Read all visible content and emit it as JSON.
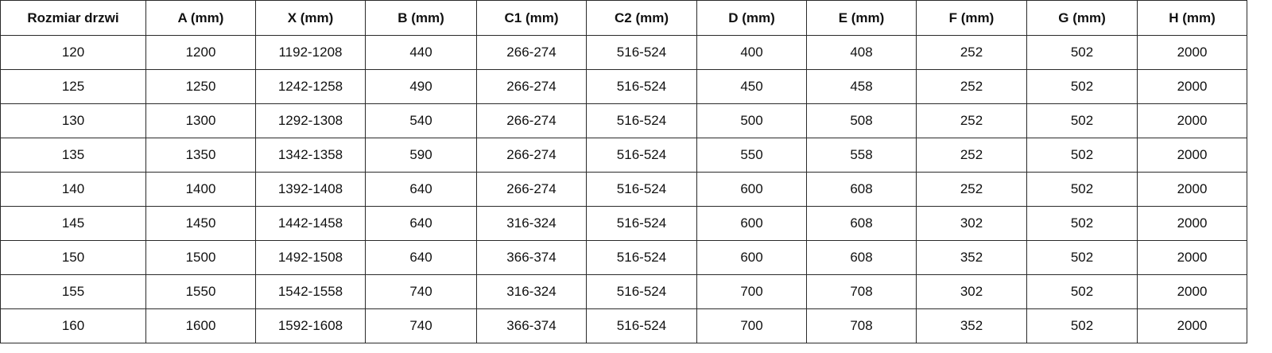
{
  "table": {
    "headers": [
      "Rozmiar drzwi",
      "A (mm)",
      "X (mm)",
      "B (mm)",
      "C1 (mm)",
      "C2 (mm)",
      "D (mm)",
      "E (mm)",
      "F (mm)",
      "G (mm)",
      "H (mm)"
    ],
    "rows": [
      [
        "120",
        "1200",
        "1192-1208",
        "440",
        "266-274",
        "516-524",
        "400",
        "408",
        "252",
        "502",
        "2000"
      ],
      [
        "125",
        "1250",
        "1242-1258",
        "490",
        "266-274",
        "516-524",
        "450",
        "458",
        "252",
        "502",
        "2000"
      ],
      [
        "130",
        "1300",
        "1292-1308",
        "540",
        "266-274",
        "516-524",
        "500",
        "508",
        "252",
        "502",
        "2000"
      ],
      [
        "135",
        "1350",
        "1342-1358",
        "590",
        "266-274",
        "516-524",
        "550",
        "558",
        "252",
        "502",
        "2000"
      ],
      [
        "140",
        "1400",
        "1392-1408",
        "640",
        "266-274",
        "516-524",
        "600",
        "608",
        "252",
        "502",
        "2000"
      ],
      [
        "145",
        "1450",
        "1442-1458",
        "640",
        "316-324",
        "516-524",
        "600",
        "608",
        "302",
        "502",
        "2000"
      ],
      [
        "150",
        "1500",
        "1492-1508",
        "640",
        "366-374",
        "516-524",
        "600",
        "608",
        "352",
        "502",
        "2000"
      ],
      [
        "155",
        "1550",
        "1542-1558",
        "740",
        "316-324",
        "516-524",
        "700",
        "708",
        "302",
        "502",
        "2000"
      ],
      [
        "160",
        "1600",
        "1592-1608",
        "740",
        "366-374",
        "516-524",
        "700",
        "708",
        "352",
        "502",
        "2000"
      ]
    ]
  }
}
